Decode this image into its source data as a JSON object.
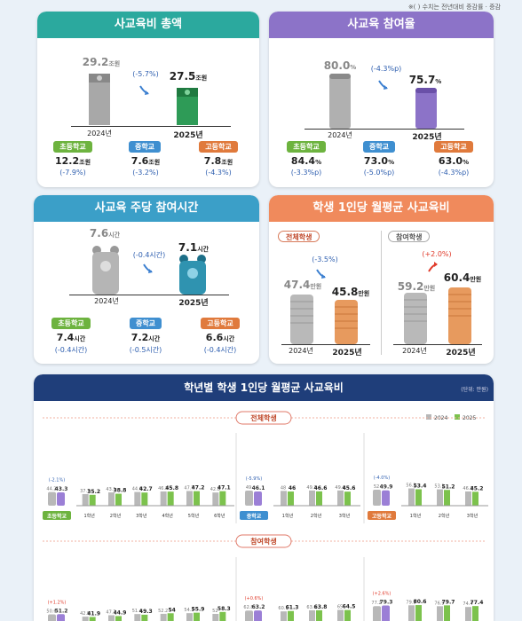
{
  "note": "※(   ) 수치는 전년대비 증감률 · 증감",
  "colors": {
    "teal": "#2ba99e",
    "purple": "#8c73c8",
    "cyan": "#3b9fc8",
    "orange": "#f08a5c",
    "navy": "#1f3e7a",
    "green": "#6db33f",
    "blue": "#3f8fd0",
    "orangeTag": "#e07a3c",
    "c2024": "#b8b8b8",
    "c2025": "#7cc24d"
  },
  "p1": {
    "title": "사교육비 총액",
    "v2024": "29.2",
    "v2025": "27.5",
    "unit": "조원",
    "chg": "(-5.7%)",
    "y2024": "2024년",
    "y2025": "2025년",
    "schools": [
      {
        "name": "초등학교",
        "val": "12.2",
        "unit": "조원",
        "chg": "(-7.9%)"
      },
      {
        "name": "중학교",
        "val": "7.6",
        "unit": "조원",
        "chg": "(-3.2%)"
      },
      {
        "name": "고등학교",
        "val": "7.8",
        "unit": "조원",
        "chg": "(-4.3%)"
      }
    ]
  },
  "p2": {
    "title": "사교육 참여율",
    "v2024": "80.0",
    "v2025": "75.7",
    "unit": "%",
    "chg": "(-4.3%p)",
    "y2024": "2024년",
    "y2025": "2025년",
    "schools": [
      {
        "name": "초등학교",
        "val": "84.4",
        "unit": "%",
        "chg": "(-3.3%p)"
      },
      {
        "name": "중학교",
        "val": "73.0",
        "unit": "%",
        "chg": "(-5.0%p)"
      },
      {
        "name": "고등학교",
        "val": "63.0",
        "unit": "%",
        "chg": "(-4.3%p)"
      }
    ]
  },
  "p3": {
    "title": "사교육 주당 참여시간",
    "v2024": "7.6",
    "v2025": "7.1",
    "unit": "시간",
    "chg": "(-0.4시간)",
    "y2024": "2024년",
    "y2025": "2025년",
    "schools": [
      {
        "name": "초등학교",
        "val": "7.4",
        "unit": "시간",
        "chg": "(-0.4시간)"
      },
      {
        "name": "중학교",
        "val": "7.2",
        "unit": "시간",
        "chg": "(-0.5시간)"
      },
      {
        "name": "고등학교",
        "val": "6.6",
        "unit": "시간",
        "chg": "(-0.4시간)"
      }
    ]
  },
  "p4": {
    "title": "학생 1인당 월평균 사교육비",
    "all": {
      "label": "전체학생",
      "v2024": "47.4",
      "v2025": "45.8",
      "unit": "만원",
      "chg": "(-3.5%)"
    },
    "part": {
      "label": "참여학생",
      "v2024": "59.2",
      "v2025": "60.4",
      "unit": "만원",
      "chg": "(+2.0%)"
    },
    "y2024": "2024년",
    "y2025": "2025년",
    "coin": "₩"
  },
  "p5": {
    "title": "학년별 학생 1인당 월평균 사교육비",
    "unitNote": "(단위: 만원)",
    "sectionAll": "전체학생",
    "sectionPart": "참여학생",
    "legend2024": "2024",
    "legend2025": "2025"
  },
  "chart_data": [
    {
      "type": "bar",
      "group": "전체학생",
      "level": "초등학교",
      "levelChg": "(-2.1%)",
      "total": [
        44.2,
        43.3
      ],
      "categories": [
        "1학년",
        "2학년",
        "3학년",
        "4학년",
        "5학년",
        "6학년"
      ],
      "series": [
        {
          "name": "2024",
          "values": [
            37.7,
            43.1,
            44.6,
            46.2,
            47.7,
            42.8
          ]
        },
        {
          "name": "2025",
          "values": [
            35.2,
            38.8,
            42.7,
            45.8,
            47.2,
            47.1
          ]
        }
      ]
    },
    {
      "type": "bar",
      "group": "전체학생",
      "level": "중학교",
      "levelChg": "(-5.9%)",
      "total": [
        49.0,
        46.1
      ],
      "categories": [
        "1학년",
        "2학년",
        "3학년"
      ],
      "series": [
        {
          "name": "2024",
          "values": [
            48.0,
            49.3,
            49.4
          ]
        },
        {
          "name": "2025",
          "values": [
            46.0,
            46.6,
            45.6
          ]
        }
      ]
    },
    {
      "type": "bar",
      "group": "전체학생",
      "level": "고등학교",
      "levelChg": "(-4.0%)",
      "total": [
        52.0,
        49.9
      ],
      "categories": [
        "1학년",
        "2학년",
        "3학년"
      ],
      "series": [
        {
          "name": "2024",
          "values": [
            56.1,
            53.1,
            46.2
          ]
        },
        {
          "name": "2025",
          "values": [
            53.4,
            51.2,
            45.2
          ]
        }
      ]
    },
    {
      "type": "bar",
      "group": "참여학생",
      "level": "초등학교",
      "levelChg": "(+1.2%)",
      "total": [
        50.6,
        51.2
      ],
      "categories": [
        "1학년",
        "2학년",
        "3학년",
        "4학년",
        "5학년",
        "6학년"
      ],
      "series": [
        {
          "name": "2024",
          "values": [
            42.9,
            47.7,
            51.4,
            52.2,
            54.3,
            52.0
          ]
        },
        {
          "name": "2025",
          "values": [
            41.9,
            44.9,
            49.3,
            54.0,
            55.9,
            58.3
          ]
        }
      ]
    },
    {
      "type": "bar",
      "group": "참여학생",
      "level": "중학교",
      "levelChg": "(+0.6%)",
      "total": [
        62.8,
        63.2
      ],
      "categories": [
        "1학년",
        "2학년",
        "3학년"
      ],
      "series": [
        {
          "name": "2024",
          "values": [
            60.1,
            63.6,
            65.0
          ]
        },
        {
          "name": "2025",
          "values": [
            61.3,
            63.8,
            64.5
          ]
        }
      ]
    },
    {
      "type": "bar",
      "group": "참여학생",
      "level": "고등학교",
      "levelChg": "(+2.6%)",
      "total": [
        77.2,
        79.3
      ],
      "categories": [
        "1학년",
        "2학년",
        "3학년"
      ],
      "series": [
        {
          "name": "2024",
          "values": [
            79.9,
            76.9,
            74.4
          ]
        },
        {
          "name": "2025",
          "values": [
            80.6,
            79.7,
            77.4
          ]
        }
      ]
    }
  ]
}
